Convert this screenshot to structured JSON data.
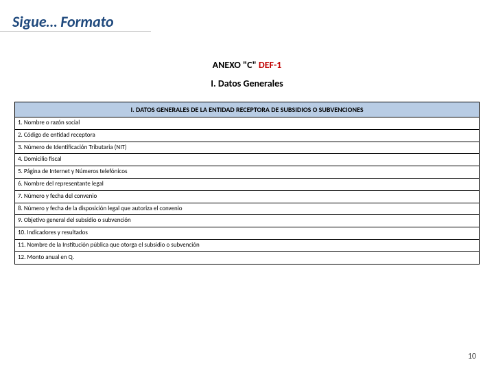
{
  "slide": {
    "title": "Sigue… Formato",
    "annex_prefix": "ANEXO \"C\"   ",
    "annex_code": "DEF-1",
    "subtitle": "I. Datos Generales",
    "page_number": "10"
  },
  "table": {
    "header_bg": "#b8cce4",
    "border_color": "#000000",
    "header_text": "I. DATOS GENERALES DE LA ENTIDAD RECEPTORA DE SUBSIDIOS O SUBVENCIONES",
    "header_fontsize": 10,
    "row_fontsize": 9,
    "rows": [
      "1. Nombre o razón social",
      "2. Código de entidad receptora",
      "3. Número de Identificación Tributaria (NIT)",
      "4. Domicilio fiscal",
      "5. Página de Internet y Números telefónicos",
      "6. Nombre del representante legal",
      "7. Número y fecha del convenio",
      "8. Número y fecha de la disposición legal que autoriza el convenio",
      "9. Objetivo general del subsidio o subvención",
      "10. Indicadores y resultados",
      "11. Nombre de la Institución pública que otorga el subsidio o subvención",
      "12. Monto anual en Q."
    ]
  }
}
